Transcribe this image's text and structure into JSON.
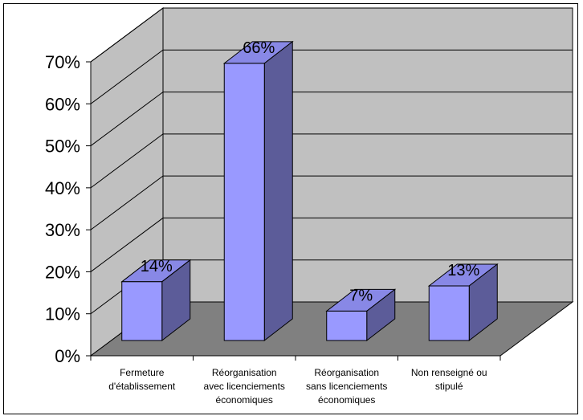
{
  "chart_data": {
    "type": "bar",
    "title": "",
    "xlabel": "",
    "ylabel": "",
    "categories": [
      "Fermeture\nd'établissement",
      "Réorganisation\navec licenciements\néconomiques",
      "Réorganisation\nsans licenciements\néconomiques",
      "Non renseigné ou\nstipulé"
    ],
    "values": [
      14,
      66,
      7,
      13
    ],
    "value_labels": [
      "14%",
      "66%",
      "7%",
      "13%"
    ],
    "ylim": [
      0,
      70
    ],
    "yticks": [
      0,
      10,
      20,
      30,
      40,
      50,
      60,
      70
    ],
    "ytick_labels": [
      "0%",
      "10%",
      "20%",
      "30%",
      "40%",
      "50%",
      "60%",
      "70%"
    ],
    "grid": true,
    "legend": "none",
    "style": "3d-column",
    "colors": {
      "bar_front": "#9999ff",
      "bar_top": "#8888e6",
      "bar_side": "#5c5c99",
      "back_wall": "#c0c0c0",
      "side_wall": "#c0c0c0",
      "floor": "#808080"
    }
  }
}
